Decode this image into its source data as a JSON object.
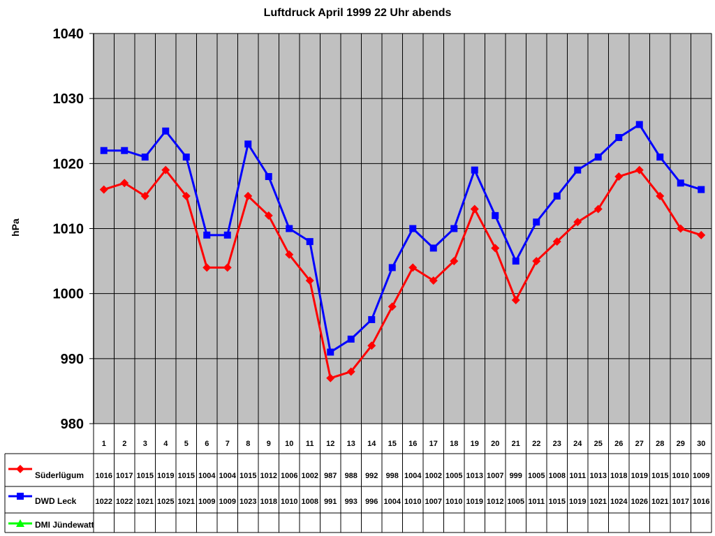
{
  "chart_data": {
    "type": "line",
    "title": "Luftdruck April 1999 22 Uhr abends",
    "xlabel": "",
    "ylabel": "hPa",
    "ylim": [
      980,
      1040
    ],
    "yticks": [
      980,
      990,
      1000,
      1010,
      1020,
      1030,
      1040
    ],
    "grid": true,
    "legend_position": "data-table-left",
    "categories": [
      1,
      2,
      3,
      4,
      5,
      6,
      7,
      8,
      9,
      10,
      11,
      12,
      13,
      14,
      15,
      16,
      17,
      18,
      19,
      20,
      21,
      22,
      23,
      24,
      25,
      26,
      27,
      28,
      29,
      30
    ],
    "series": [
      {
        "name": "Süderlügum",
        "color": "#ff0000",
        "marker": "diamond",
        "values": [
          1016,
          1017,
          1015,
          1019,
          1015,
          1004,
          1004,
          1015,
          1012,
          1006,
          1002,
          987,
          988,
          992,
          998,
          1004,
          1002,
          1005,
          1013,
          1007,
          999,
          1005,
          1008,
          1011,
          1013,
          1018,
          1019,
          1015,
          1010,
          1009
        ]
      },
      {
        "name": "DWD Leck",
        "color": "#0000ff",
        "marker": "square",
        "values": [
          1022,
          1022,
          1021,
          1025,
          1021,
          1009,
          1009,
          1023,
          1018,
          1010,
          1008,
          991,
          993,
          996,
          1004,
          1010,
          1007,
          1010,
          1019,
          1012,
          1005,
          1011,
          1015,
          1019,
          1021,
          1024,
          1026,
          1021,
          1017,
          1016
        ]
      },
      {
        "name": "DMI Jündewatt",
        "color": "#00ff00",
        "marker": "triangle",
        "values": []
      }
    ]
  },
  "colors": {
    "plot_bg": "#c0c0c0",
    "grid": "#000000"
  }
}
